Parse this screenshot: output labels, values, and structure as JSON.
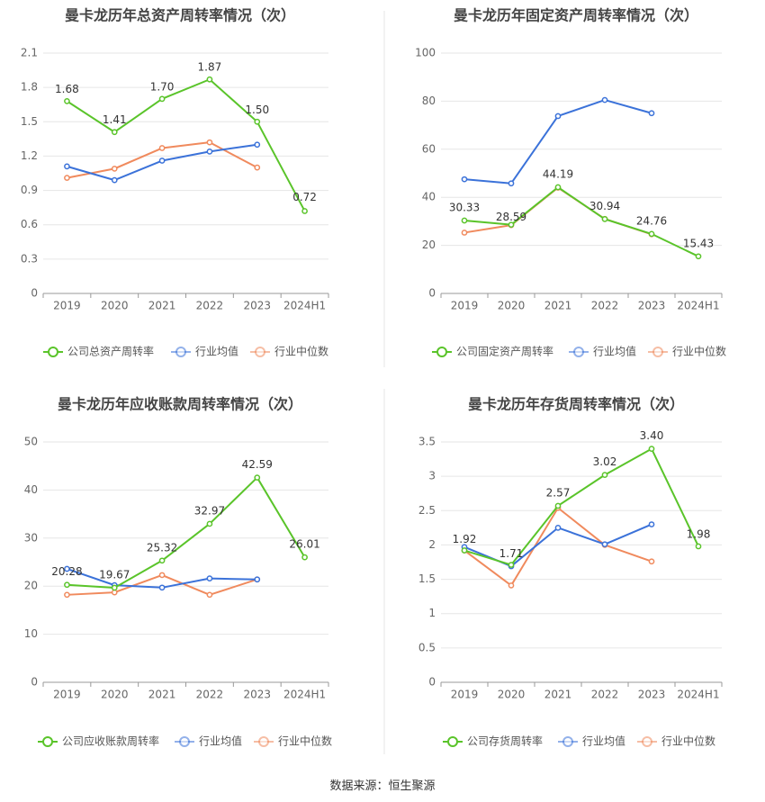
{
  "source_label": "数据来源：恒生聚源",
  "colors": {
    "company": "#5ac42a",
    "avg": "#3b72d9",
    "median": "#f08a5d"
  },
  "chart_data": [
    {
      "type": "line",
      "title": "曼卡龙历年总资产周转率情况（次）",
      "categories": [
        "2019",
        "2020",
        "2021",
        "2022",
        "2023",
        "2024H1"
      ],
      "y_ticks": [
        "0",
        "0.3",
        "0.6",
        "0.9",
        "1.2",
        "1.5",
        "1.8",
        "2.1"
      ],
      "ylim": [
        0,
        2.1
      ],
      "grid": true,
      "legend_position": "bottom",
      "series": [
        {
          "name": "公司总资产周转率",
          "values": [
            1.68,
            1.41,
            1.7,
            1.87,
            1.5,
            0.72
          ],
          "labels": [
            "1.68",
            "1.41",
            "1.70",
            "1.87",
            "1.50",
            "0.72"
          ]
        },
        {
          "name": "行业均值",
          "values": [
            1.11,
            0.99,
            1.16,
            1.24,
            1.3,
            null
          ]
        },
        {
          "name": "行业中位数",
          "values": [
            1.01,
            1.09,
            1.27,
            1.32,
            1.1,
            null
          ]
        }
      ]
    },
    {
      "type": "line",
      "title": "曼卡龙历年固定资产周转率情况（次）",
      "categories": [
        "2019",
        "2020",
        "2021",
        "2022",
        "2023",
        "2024H1"
      ],
      "y_ticks": [
        "0",
        "20",
        "40",
        "60",
        "80",
        "100"
      ],
      "ylim": [
        0,
        100
      ],
      "grid": true,
      "legend_position": "bottom",
      "series": [
        {
          "name": "公司固定资产周转率",
          "values": [
            30.33,
            28.59,
            44.19,
            30.94,
            24.76,
            15.43
          ],
          "labels": [
            "30.33",
            "28.59",
            "44.19",
            "30.94",
            "24.76",
            "15.43"
          ]
        },
        {
          "name": "行业均值",
          "values": [
            47.5,
            45.8,
            73.8,
            80.5,
            75.0,
            null
          ]
        },
        {
          "name": "行业中位数",
          "values": [
            25.3,
            28.4,
            44.0,
            31.0,
            24.6,
            null
          ]
        }
      ]
    },
    {
      "type": "line",
      "title": "曼卡龙历年应收账款周转率情况（次）",
      "categories": [
        "2019",
        "2020",
        "2021",
        "2022",
        "2023",
        "2024H1"
      ],
      "y_ticks": [
        "0",
        "10",
        "20",
        "30",
        "40",
        "50"
      ],
      "ylim": [
        0,
        50
      ],
      "grid": true,
      "legend_position": "bottom",
      "series": [
        {
          "name": "公司应收账款周转率",
          "values": [
            20.28,
            19.67,
            25.32,
            32.97,
            42.59,
            26.01
          ],
          "labels": [
            "20.28",
            "19.67",
            "25.32",
            "32.97",
            "42.59",
            "26.01"
          ]
        },
        {
          "name": "行业均值",
          "values": [
            23.6,
            20.2,
            19.7,
            21.6,
            21.4,
            null
          ]
        },
        {
          "name": "行业中位数",
          "values": [
            18.2,
            18.7,
            22.3,
            18.2,
            21.4,
            null
          ]
        }
      ]
    },
    {
      "type": "line",
      "title": "曼卡龙历年存货周转率情况（次）",
      "categories": [
        "2019",
        "2020",
        "2021",
        "2022",
        "2023",
        "2024H1"
      ],
      "y_ticks": [
        "0",
        "0.5",
        "1",
        "1.5",
        "2",
        "2.5",
        "3",
        "3.5"
      ],
      "ylim": [
        0,
        3.5
      ],
      "grid": true,
      "legend_position": "bottom",
      "series": [
        {
          "name": "公司存货周转率",
          "values": [
            1.92,
            1.71,
            2.57,
            3.02,
            3.4,
            1.98
          ],
          "labels": [
            "1.92",
            "1.71",
            "2.57",
            "3.02",
            "3.40",
            "1.98"
          ]
        },
        {
          "name": "行业均值",
          "values": [
            1.97,
            1.69,
            2.25,
            2.01,
            2.3,
            null
          ]
        },
        {
          "name": "行业中位数",
          "values": [
            1.92,
            1.41,
            2.54,
            2.0,
            1.76,
            null
          ]
        }
      ]
    }
  ]
}
